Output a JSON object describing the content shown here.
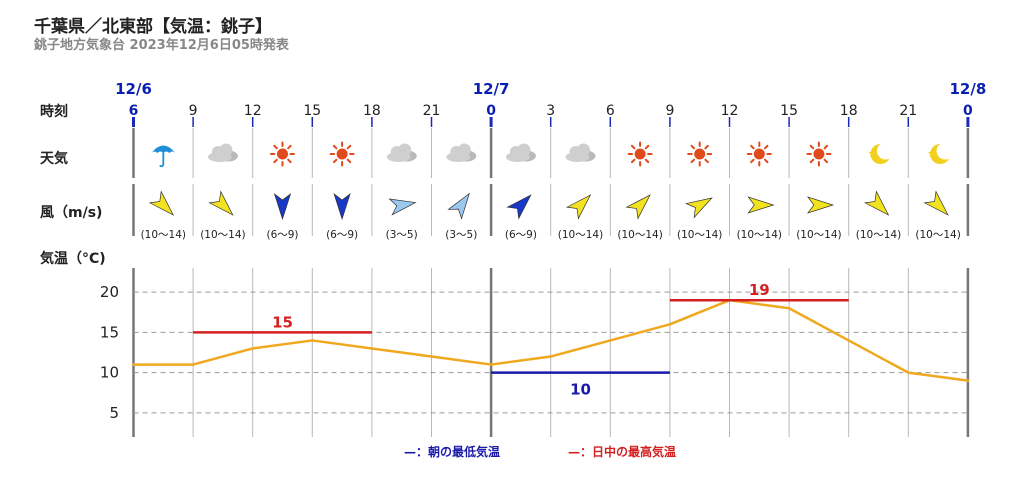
{
  "header": {
    "title": "千葉県／北東部【気温：銚子】",
    "subtitle": "銚子地方気象台 2023年12月6日05時発表"
  },
  "row_labels": {
    "time": "時刻",
    "weather": "天気",
    "wind": "風（m/s)",
    "temp": "気温（°C)"
  },
  "dates": [
    {
      "label": "12/6",
      "slot": 0
    },
    {
      "label": "12/7",
      "slot": 6
    },
    {
      "label": "12/8",
      "slot": 14
    }
  ],
  "hours": [
    "6",
    "9",
    "12",
    "15",
    "18",
    "21",
    "0",
    "3",
    "6",
    "9",
    "12",
    "15",
    "18",
    "21",
    "0"
  ],
  "weather_icons": [
    "umbrella-icon",
    "cloud-icon",
    "sun-icon",
    "sun-icon",
    "cloud-icon",
    "cloud-icon",
    "cloud-icon",
    "cloud-icon",
    "sun-icon",
    "sun-icon",
    "sun-icon",
    "sun-icon",
    "moon-icon",
    "moon-icon"
  ],
  "wind": [
    {
      "range": "(10〜14)",
      "color": "#f2e21f",
      "dir_deg": 315
    },
    {
      "range": "(10〜14)",
      "color": "#f2e21f",
      "dir_deg": 315
    },
    {
      "range": "(6〜9)",
      "color": "#1838c8",
      "dir_deg": 0
    },
    {
      "range": "(6〜9)",
      "color": "#1838c8",
      "dir_deg": 0
    },
    {
      "range": "(3〜5)",
      "color": "#9cc7ee",
      "dir_deg": 260
    },
    {
      "range": "(3〜5)",
      "color": "#9cc7ee",
      "dir_deg": 215
    },
    {
      "range": "(6〜9)",
      "color": "#1838c8",
      "dir_deg": 225
    },
    {
      "range": "(10〜14)",
      "color": "#f2e21f",
      "dir_deg": 225
    },
    {
      "range": "(10〜14)",
      "color": "#f2e21f",
      "dir_deg": 225
    },
    {
      "range": "(10〜14)",
      "color": "#f2e21f",
      "dir_deg": 240
    },
    {
      "range": "(10〜14)",
      "color": "#f2e21f",
      "dir_deg": 270
    },
    {
      "range": "(10〜14)",
      "color": "#f2e21f",
      "dir_deg": 270
    },
    {
      "range": "(10〜14)",
      "color": "#f2e21f",
      "dir_deg": 315
    },
    {
      "range": "(10〜14)",
      "color": "#f2e21f",
      "dir_deg": 315
    }
  ],
  "legend": {
    "min_label": "—：朝の最低気温",
    "max_label": "—：日中の最高気温"
  },
  "colors": {
    "temp_line": "#f0a81e",
    "min_line": "#1a1aaa",
    "max_line": "#d42020",
    "date_text": "#0a1fb0",
    "hour_tick": "#1a2ab8"
  },
  "chart_data": {
    "type": "line",
    "x": [
      "6",
      "9",
      "12",
      "15",
      "18",
      "21",
      "0",
      "3",
      "6",
      "9",
      "12",
      "15",
      "18",
      "21",
      "0"
    ],
    "series": [
      {
        "values": [
          11,
          11,
          13,
          14,
          13,
          12,
          11,
          12,
          14,
          16,
          19,
          18,
          14,
          10,
          9
        ]
      }
    ],
    "ylabel": "気温（°C)",
    "ylim": [
      2,
      23
    ],
    "yticks": [
      5,
      10,
      15,
      20
    ],
    "grid": true,
    "min_temp": {
      "value": 10,
      "label": "10",
      "x_from": 6,
      "x_to": 9
    },
    "max_temp": [
      {
        "value": 15,
        "label": "15",
        "x_from": 1,
        "x_to": 4
      },
      {
        "value": 19,
        "label": "19",
        "x_from": 9,
        "x_to": 12
      }
    ]
  }
}
